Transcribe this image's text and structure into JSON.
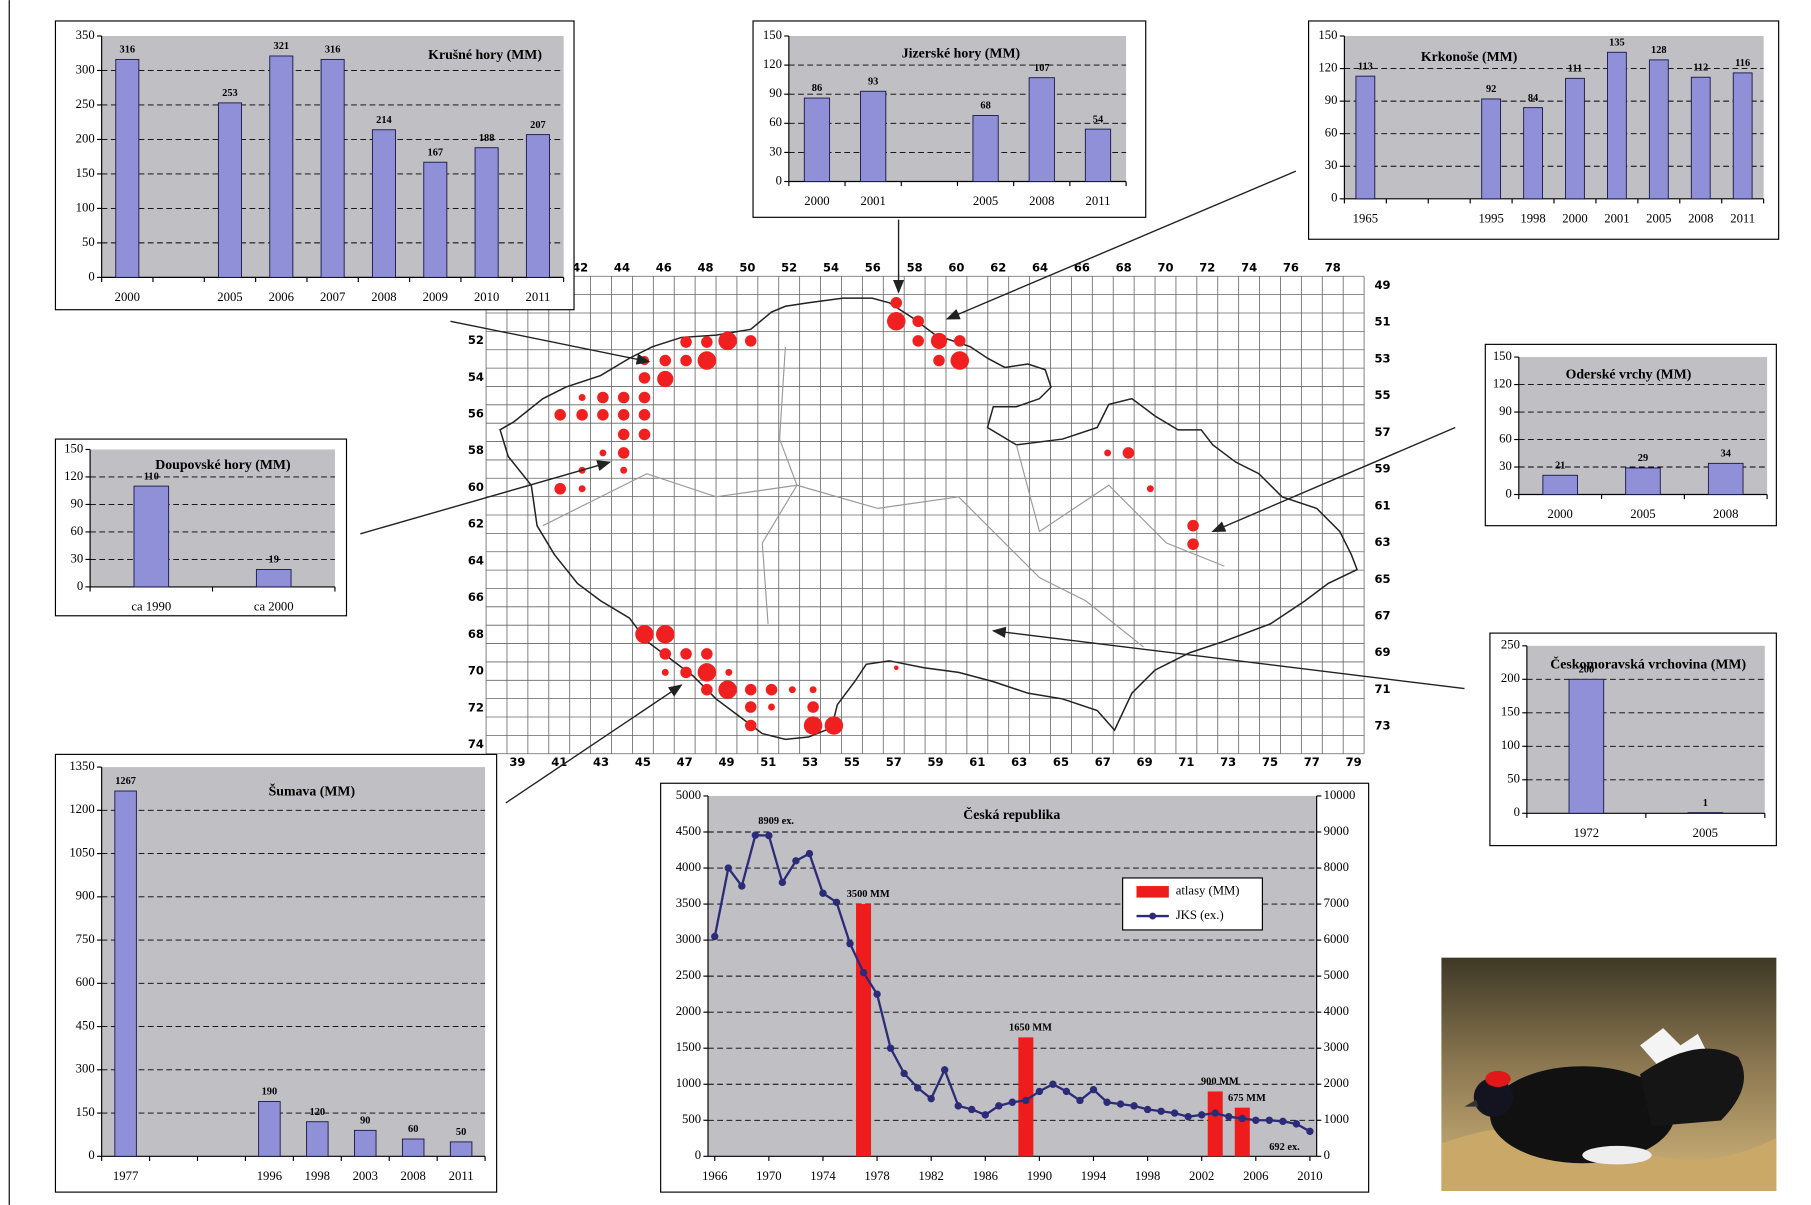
{
  "chart_data": [
    {
      "type": "bar",
      "title": "Krušné hory (MM)",
      "categories": [
        "2000",
        null,
        "2005",
        "2006",
        "2007",
        "2008",
        "2009",
        "2010",
        "2011"
      ],
      "values": [
        316,
        null,
        253,
        321,
        316,
        214,
        167,
        188,
        207
      ],
      "color": "#9090d8",
      "ylim": [
        0,
        350
      ],
      "yticks": [
        0,
        50,
        100,
        150,
        200,
        250,
        300,
        350
      ],
      "grid": true
    },
    {
      "type": "bar",
      "title": "Jizerské hory (MM)",
      "categories": [
        "2000",
        "2001",
        null,
        "2005",
        "2008",
        "2011"
      ],
      "values": [
        86,
        93,
        null,
        68,
        107,
        54
      ],
      "color": "#9090d8",
      "ylim": [
        0,
        150
      ],
      "yticks": [
        0,
        30,
        60,
        90,
        120,
        150
      ],
      "grid": true
    },
    {
      "type": "bar",
      "title": "Krkonoše (MM)",
      "categories": [
        "1965",
        null,
        null,
        "1995",
        "1998",
        "2000",
        "2001",
        "2005",
        "2008",
        "2011"
      ],
      "values": [
        113,
        null,
        null,
        92,
        84,
        111,
        135,
        128,
        112,
        116
      ],
      "color": "#9090d8",
      "ylim": [
        0,
        150
      ],
      "yticks": [
        0,
        30,
        60,
        90,
        120,
        150
      ],
      "grid": true
    },
    {
      "type": "bar",
      "title": "Doupovské hory (MM)",
      "categories": [
        "ca 1990",
        "ca 2000"
      ],
      "values": [
        110,
        19
      ],
      "color": "#9090d8",
      "ylim": [
        0,
        150
      ],
      "yticks": [
        0,
        30,
        60,
        90,
        120,
        150
      ],
      "grid": true
    },
    {
      "type": "bar",
      "title": "Oderské vrchy (MM)",
      "categories": [
        "2000",
        "2005",
        "2008"
      ],
      "values": [
        21,
        29,
        34
      ],
      "color": "#9090d8",
      "ylim": [
        0,
        150
      ],
      "yticks": [
        0,
        30,
        60,
        90,
        120,
        150
      ],
      "grid": true
    },
    {
      "type": "bar",
      "title": "Českomoravská vrchovina (MM)",
      "categories": [
        "1972",
        "2005"
      ],
      "values": [
        200,
        1
      ],
      "color": "#9090d8",
      "ylim": [
        0,
        250
      ],
      "yticks": [
        0,
        50,
        100,
        150,
        200,
        250
      ],
      "grid": true
    },
    {
      "type": "bar",
      "title": "Šumava (MM)",
      "categories": [
        "1977",
        null,
        null,
        "1996",
        "1998",
        "2003",
        "2008",
        "2011"
      ],
      "values": [
        1267,
        null,
        null,
        190,
        120,
        90,
        60,
        50
      ],
      "color": "#9090d8",
      "ylim": [
        0,
        1350
      ],
      "yticks": [
        0,
        150,
        300,
        450,
        600,
        750,
        900,
        1050,
        1200,
        1350
      ],
      "grid": true
    },
    {
      "type": "combo",
      "title": "Česká republika",
      "xlim": [
        1965.5,
        2010.5
      ],
      "xticks": [
        1966,
        1970,
        1974,
        1978,
        1982,
        1986,
        1990,
        1994,
        1998,
        2002,
        2006,
        2010
      ],
      "ylim": [
        0,
        5000
      ],
      "yticks": [
        0,
        500,
        1000,
        1500,
        2000,
        2500,
        3000,
        3500,
        4000,
        4500,
        5000
      ],
      "y2lim": [
        0,
        10000
      ],
      "y2ticks": [
        0,
        1000,
        2000,
        3000,
        4000,
        5000,
        6000,
        7000,
        8000,
        9000,
        10000
      ],
      "grid": true,
      "legend": "upper right",
      "series": [
        {
          "name": "atlasy (MM)",
          "type": "bar",
          "color": "#ee1c1c",
          "x": [
            1977,
            1989,
            2003,
            2005
          ],
          "values": [
            3500,
            1650,
            900,
            675
          ],
          "value_labels": [
            "3500 MM",
            "1650 MM",
            "900 MM",
            "675 MM"
          ]
        },
        {
          "name": "JKS (ex.)",
          "type": "line",
          "axis": "y2",
          "color": "#2b2b78",
          "x": [
            1966,
            1967,
            1968,
            1969,
            1970,
            1971,
            1972,
            1973,
            1974,
            1975,
            1976,
            1977,
            1978,
            1979,
            1980,
            1981,
            1982,
            1983,
            1984,
            1985,
            1986,
            1987,
            1988,
            1989,
            1990,
            1991,
            1992,
            1993,
            1994,
            1995,
            1996,
            1997,
            1998,
            1999,
            2000,
            2001,
            2002,
            2003,
            2004,
            2005,
            2006,
            2007,
            2008,
            2009,
            2010
          ],
          "values": [
            6100,
            8000,
            7500,
            8909,
            8900,
            7600,
            8200,
            8400,
            7300,
            7050,
            5900,
            5100,
            4500,
            3000,
            2300,
            1900,
            1600,
            2400,
            1400,
            1300,
            1150,
            1400,
            1500,
            1550,
            1800,
            2000,
            1800,
            1550,
            1850,
            1500,
            1450,
            1400,
            1300,
            1250,
            1200,
            1100,
            1150,
            1200,
            1100,
            1050,
            1000,
            1000,
            970,
            900,
            692
          ],
          "value_labels": [
            null,
            null,
            null,
            "8909 ex.",
            null,
            null,
            null,
            null,
            null,
            null,
            null,
            null,
            null,
            null,
            null,
            null,
            null,
            null,
            null,
            null,
            null,
            null,
            null,
            null,
            null,
            null,
            null,
            null,
            null,
            null,
            null,
            null,
            null,
            null,
            null,
            null,
            null,
            null,
            null,
            null,
            null,
            null,
            null,
            null,
            "692 ex."
          ]
        }
      ]
    }
  ],
  "map": {
    "columns_top": [
      42,
      44,
      46,
      48,
      50,
      52,
      54,
      56,
      58,
      60,
      62,
      64,
      66,
      68,
      70,
      72,
      74,
      76,
      78
    ],
    "columns_bottom": [
      39,
      41,
      43,
      45,
      47,
      49,
      51,
      53,
      55,
      57,
      59,
      61,
      63,
      65,
      67,
      69,
      71,
      73,
      75,
      77,
      79
    ],
    "rows_left": [
      52,
      54,
      56,
      58,
      60,
      62,
      64,
      66,
      68,
      70,
      72,
      74
    ],
    "rows_right": [
      49,
      51,
      53,
      55,
      57,
      59,
      61,
      63,
      65,
      67,
      69,
      71,
      73
    ]
  }
}
